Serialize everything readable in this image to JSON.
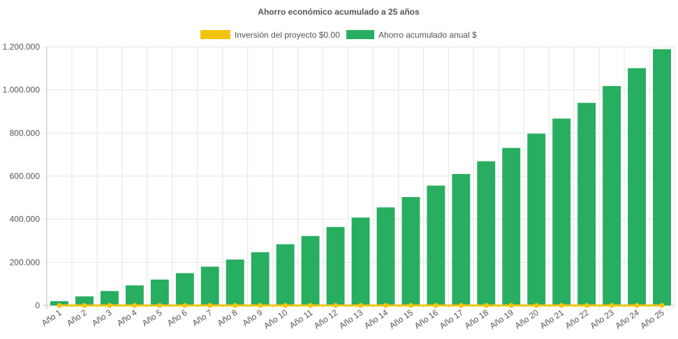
{
  "colors": {
    "investment": "#f1c40f",
    "savings": "#27ae60",
    "grid": "#e5e5e5",
    "axis": "#bdbdbd",
    "text": "#555555"
  },
  "chart_data": {
    "type": "bar",
    "title": "Ahorro económico acumulado a 25 años",
    "xlabel": "",
    "ylabel": "",
    "ylim": [
      0,
      1200000
    ],
    "yticks": [
      0,
      200000,
      400000,
      600000,
      800000,
      1000000,
      1200000
    ],
    "ytick_labels": [
      "0",
      "200.000",
      "400.000",
      "600.000",
      "800.000",
      "1.000.000",
      "1.200.000"
    ],
    "legend_position": "top",
    "grid": true,
    "categories": [
      "Año 1",
      "Año 2",
      "Año 3",
      "Año 4",
      "Año 5",
      "Año 6",
      "Año 7",
      "Año 8",
      "Año 9",
      "Año 10",
      "Año 11",
      "Año 12",
      "Año 13",
      "Año 14",
      "Año 15",
      "Año 16",
      "Año 17",
      "Año 18",
      "Año 19",
      "Año 20",
      "Año 21",
      "Año 22",
      "Año 23",
      "Año 24",
      "Año 25"
    ],
    "series": [
      {
        "name": "Inversión del proyecto $0.00",
        "type": "line",
        "color": "#f1c40f",
        "values": [
          0,
          0,
          0,
          0,
          0,
          0,
          0,
          0,
          0,
          0,
          0,
          0,
          0,
          0,
          0,
          0,
          0,
          0,
          0,
          0,
          0,
          0,
          0,
          0,
          0
        ]
      },
      {
        "name": "Ahorro acumulado anual $",
        "type": "bar",
        "color": "#27ae60",
        "values": [
          20000,
          42000,
          67000,
          93000,
          120000,
          150000,
          180000,
          213000,
          247000,
          284000,
          322000,
          364000,
          408000,
          455000,
          503000,
          556000,
          610000,
          669000,
          731000,
          797000,
          867000,
          940000,
          1018000,
          1101000,
          1189000
        ]
      }
    ]
  }
}
